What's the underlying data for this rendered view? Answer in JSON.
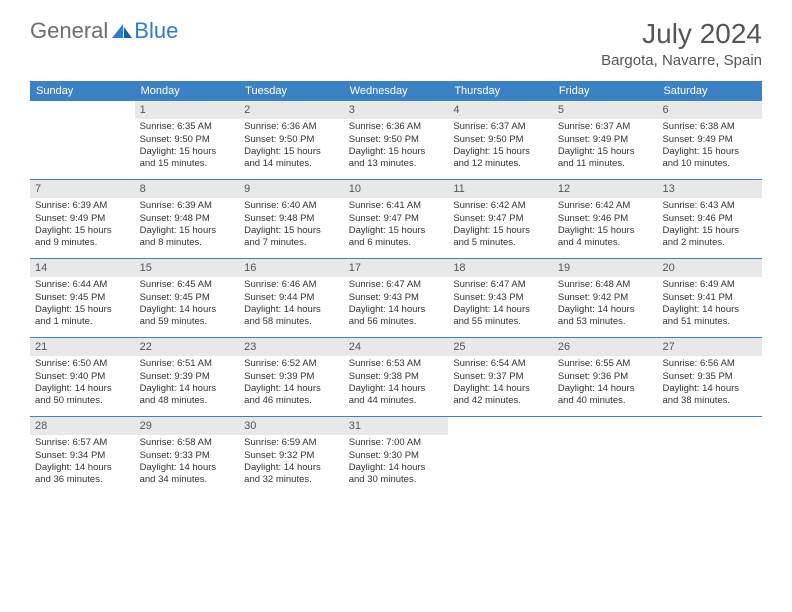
{
  "logo": {
    "text1": "General",
    "text2": "Blue"
  },
  "title": "July 2024",
  "location": "Bargota, Navarre, Spain",
  "colors": {
    "header_bg": "#3b82c4",
    "daynum_bg": "#e8e8e8",
    "border": "#3b82c4",
    "text": "#333333",
    "title_text": "#555555"
  },
  "day_names": [
    "Sunday",
    "Monday",
    "Tuesday",
    "Wednesday",
    "Thursday",
    "Friday",
    "Saturday"
  ],
  "weeks": [
    [
      {
        "n": "",
        "empty": true
      },
      {
        "n": "1",
        "sr": "Sunrise: 6:35 AM",
        "ss": "Sunset: 9:50 PM",
        "dl1": "Daylight: 15 hours",
        "dl2": "and 15 minutes."
      },
      {
        "n": "2",
        "sr": "Sunrise: 6:36 AM",
        "ss": "Sunset: 9:50 PM",
        "dl1": "Daylight: 15 hours",
        "dl2": "and 14 minutes."
      },
      {
        "n": "3",
        "sr": "Sunrise: 6:36 AM",
        "ss": "Sunset: 9:50 PM",
        "dl1": "Daylight: 15 hours",
        "dl2": "and 13 minutes."
      },
      {
        "n": "4",
        "sr": "Sunrise: 6:37 AM",
        "ss": "Sunset: 9:50 PM",
        "dl1": "Daylight: 15 hours",
        "dl2": "and 12 minutes."
      },
      {
        "n": "5",
        "sr": "Sunrise: 6:37 AM",
        "ss": "Sunset: 9:49 PM",
        "dl1": "Daylight: 15 hours",
        "dl2": "and 11 minutes."
      },
      {
        "n": "6",
        "sr": "Sunrise: 6:38 AM",
        "ss": "Sunset: 9:49 PM",
        "dl1": "Daylight: 15 hours",
        "dl2": "and 10 minutes."
      }
    ],
    [
      {
        "n": "7",
        "sr": "Sunrise: 6:39 AM",
        "ss": "Sunset: 9:49 PM",
        "dl1": "Daylight: 15 hours",
        "dl2": "and 9 minutes."
      },
      {
        "n": "8",
        "sr": "Sunrise: 6:39 AM",
        "ss": "Sunset: 9:48 PM",
        "dl1": "Daylight: 15 hours",
        "dl2": "and 8 minutes."
      },
      {
        "n": "9",
        "sr": "Sunrise: 6:40 AM",
        "ss": "Sunset: 9:48 PM",
        "dl1": "Daylight: 15 hours",
        "dl2": "and 7 minutes."
      },
      {
        "n": "10",
        "sr": "Sunrise: 6:41 AM",
        "ss": "Sunset: 9:47 PM",
        "dl1": "Daylight: 15 hours",
        "dl2": "and 6 minutes."
      },
      {
        "n": "11",
        "sr": "Sunrise: 6:42 AM",
        "ss": "Sunset: 9:47 PM",
        "dl1": "Daylight: 15 hours",
        "dl2": "and 5 minutes."
      },
      {
        "n": "12",
        "sr": "Sunrise: 6:42 AM",
        "ss": "Sunset: 9:46 PM",
        "dl1": "Daylight: 15 hours",
        "dl2": "and 4 minutes."
      },
      {
        "n": "13",
        "sr": "Sunrise: 6:43 AM",
        "ss": "Sunset: 9:46 PM",
        "dl1": "Daylight: 15 hours",
        "dl2": "and 2 minutes."
      }
    ],
    [
      {
        "n": "14",
        "sr": "Sunrise: 6:44 AM",
        "ss": "Sunset: 9:45 PM",
        "dl1": "Daylight: 15 hours",
        "dl2": "and 1 minute."
      },
      {
        "n": "15",
        "sr": "Sunrise: 6:45 AM",
        "ss": "Sunset: 9:45 PM",
        "dl1": "Daylight: 14 hours",
        "dl2": "and 59 minutes."
      },
      {
        "n": "16",
        "sr": "Sunrise: 6:46 AM",
        "ss": "Sunset: 9:44 PM",
        "dl1": "Daylight: 14 hours",
        "dl2": "and 58 minutes."
      },
      {
        "n": "17",
        "sr": "Sunrise: 6:47 AM",
        "ss": "Sunset: 9:43 PM",
        "dl1": "Daylight: 14 hours",
        "dl2": "and 56 minutes."
      },
      {
        "n": "18",
        "sr": "Sunrise: 6:47 AM",
        "ss": "Sunset: 9:43 PM",
        "dl1": "Daylight: 14 hours",
        "dl2": "and 55 minutes."
      },
      {
        "n": "19",
        "sr": "Sunrise: 6:48 AM",
        "ss": "Sunset: 9:42 PM",
        "dl1": "Daylight: 14 hours",
        "dl2": "and 53 minutes."
      },
      {
        "n": "20",
        "sr": "Sunrise: 6:49 AM",
        "ss": "Sunset: 9:41 PM",
        "dl1": "Daylight: 14 hours",
        "dl2": "and 51 minutes."
      }
    ],
    [
      {
        "n": "21",
        "sr": "Sunrise: 6:50 AM",
        "ss": "Sunset: 9:40 PM",
        "dl1": "Daylight: 14 hours",
        "dl2": "and 50 minutes."
      },
      {
        "n": "22",
        "sr": "Sunrise: 6:51 AM",
        "ss": "Sunset: 9:39 PM",
        "dl1": "Daylight: 14 hours",
        "dl2": "and 48 minutes."
      },
      {
        "n": "23",
        "sr": "Sunrise: 6:52 AM",
        "ss": "Sunset: 9:39 PM",
        "dl1": "Daylight: 14 hours",
        "dl2": "and 46 minutes."
      },
      {
        "n": "24",
        "sr": "Sunrise: 6:53 AM",
        "ss": "Sunset: 9:38 PM",
        "dl1": "Daylight: 14 hours",
        "dl2": "and 44 minutes."
      },
      {
        "n": "25",
        "sr": "Sunrise: 6:54 AM",
        "ss": "Sunset: 9:37 PM",
        "dl1": "Daylight: 14 hours",
        "dl2": "and 42 minutes."
      },
      {
        "n": "26",
        "sr": "Sunrise: 6:55 AM",
        "ss": "Sunset: 9:36 PM",
        "dl1": "Daylight: 14 hours",
        "dl2": "and 40 minutes."
      },
      {
        "n": "27",
        "sr": "Sunrise: 6:56 AM",
        "ss": "Sunset: 9:35 PM",
        "dl1": "Daylight: 14 hours",
        "dl2": "and 38 minutes."
      }
    ],
    [
      {
        "n": "28",
        "sr": "Sunrise: 6:57 AM",
        "ss": "Sunset: 9:34 PM",
        "dl1": "Daylight: 14 hours",
        "dl2": "and 36 minutes."
      },
      {
        "n": "29",
        "sr": "Sunrise: 6:58 AM",
        "ss": "Sunset: 9:33 PM",
        "dl1": "Daylight: 14 hours",
        "dl2": "and 34 minutes."
      },
      {
        "n": "30",
        "sr": "Sunrise: 6:59 AM",
        "ss": "Sunset: 9:32 PM",
        "dl1": "Daylight: 14 hours",
        "dl2": "and 32 minutes."
      },
      {
        "n": "31",
        "sr": "Sunrise: 7:00 AM",
        "ss": "Sunset: 9:30 PM",
        "dl1": "Daylight: 14 hours",
        "dl2": "and 30 minutes."
      },
      {
        "n": "",
        "empty": true
      },
      {
        "n": "",
        "empty": true
      },
      {
        "n": "",
        "empty": true
      }
    ]
  ]
}
